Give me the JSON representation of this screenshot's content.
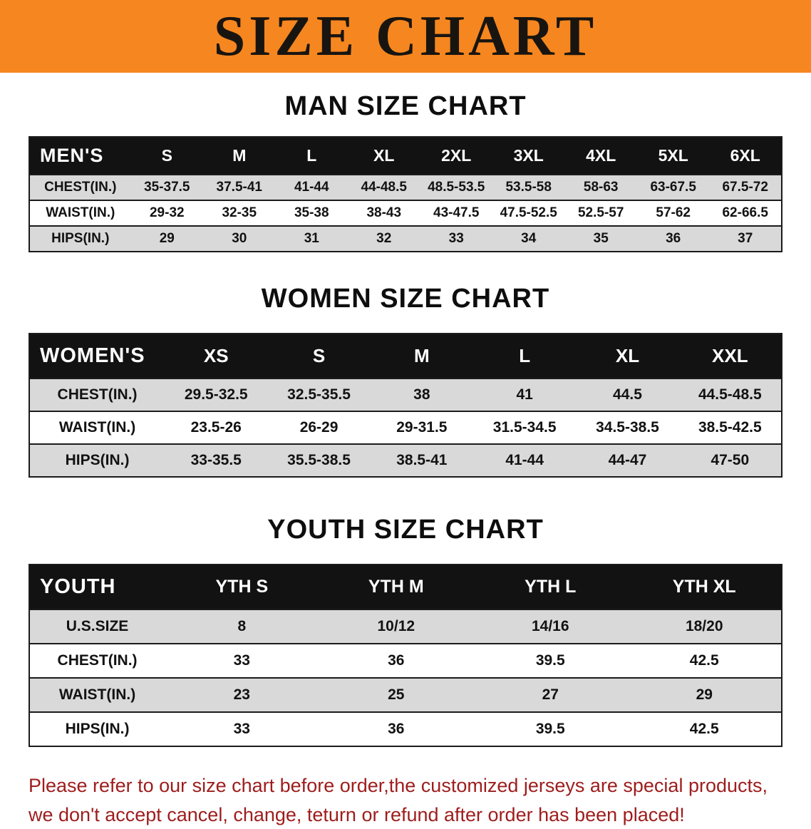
{
  "banner": {
    "title": "SIZE CHART",
    "bg_color": "#f6861f",
    "text_color": "#181511"
  },
  "sections": [
    {
      "heading": "MAN SIZE CHART",
      "table": {
        "label_header": "MEN'S",
        "columns": [
          "S",
          "M",
          "L",
          "XL",
          "2XL",
          "3XL",
          "4XL",
          "5XL",
          "6XL"
        ],
        "rows": [
          {
            "label": "CHEST(IN.)",
            "values": [
              "35-37.5",
              "37.5-41",
              "41-44",
              "44-48.5",
              "48.5-53.5",
              "53.5-58",
              "58-63",
              "63-67.5",
              "67.5-72"
            ]
          },
          {
            "label": "WAIST(IN.)",
            "values": [
              "29-32",
              "32-35",
              "35-38",
              "38-43",
              "43-47.5",
              "47.5-52.5",
              "52.5-57",
              "57-62",
              "62-66.5"
            ]
          },
          {
            "label": "HIPS(IN.)",
            "values": [
              "29",
              "30",
              "31",
              "32",
              "33",
              "34",
              "35",
              "36",
              "37"
            ]
          }
        ]
      }
    },
    {
      "heading": "WOMEN SIZE CHART",
      "table": {
        "label_header": "WOMEN'S",
        "columns": [
          "XS",
          "S",
          "M",
          "L",
          "XL",
          "XXL"
        ],
        "rows": [
          {
            "label": "CHEST(IN.)",
            "values": [
              "29.5-32.5",
              "32.5-35.5",
              "38",
              "41",
              "44.5",
              "44.5-48.5"
            ]
          },
          {
            "label": "WAIST(IN.)",
            "values": [
              "23.5-26",
              "26-29",
              "29-31.5",
              "31.5-34.5",
              "34.5-38.5",
              "38.5-42.5"
            ]
          },
          {
            "label": "HIPS(IN.)",
            "values": [
              "33-35.5",
              "35.5-38.5",
              "38.5-41",
              "41-44",
              "44-47",
              "47-50"
            ]
          }
        ]
      }
    },
    {
      "heading": "YOUTH SIZE CHART",
      "table": {
        "label_header": "YOUTH",
        "columns": [
          "YTH S",
          "YTH M",
          "YTH L",
          "YTH XL"
        ],
        "rows": [
          {
            "label": "U.S.SIZE",
            "values": [
              "8",
              "10/12",
              "14/16",
              "18/20"
            ]
          },
          {
            "label": "CHEST(IN.)",
            "values": [
              "33",
              "36",
              "39.5",
              "42.5"
            ]
          },
          {
            "label": "WAIST(IN.)",
            "values": [
              "23",
              "25",
              "27",
              "29"
            ]
          },
          {
            "label": "HIPS(IN.)",
            "values": [
              "33",
              "36",
              "39.5",
              "42.5"
            ]
          }
        ]
      }
    }
  ],
  "footer": {
    "line1": "Please refer to our size chart before order,the customized jerseys are special products,",
    "line2": "we don't accept cancel, change, teturn or refund after order has been placed!",
    "text_color": "#9e1d1d"
  }
}
